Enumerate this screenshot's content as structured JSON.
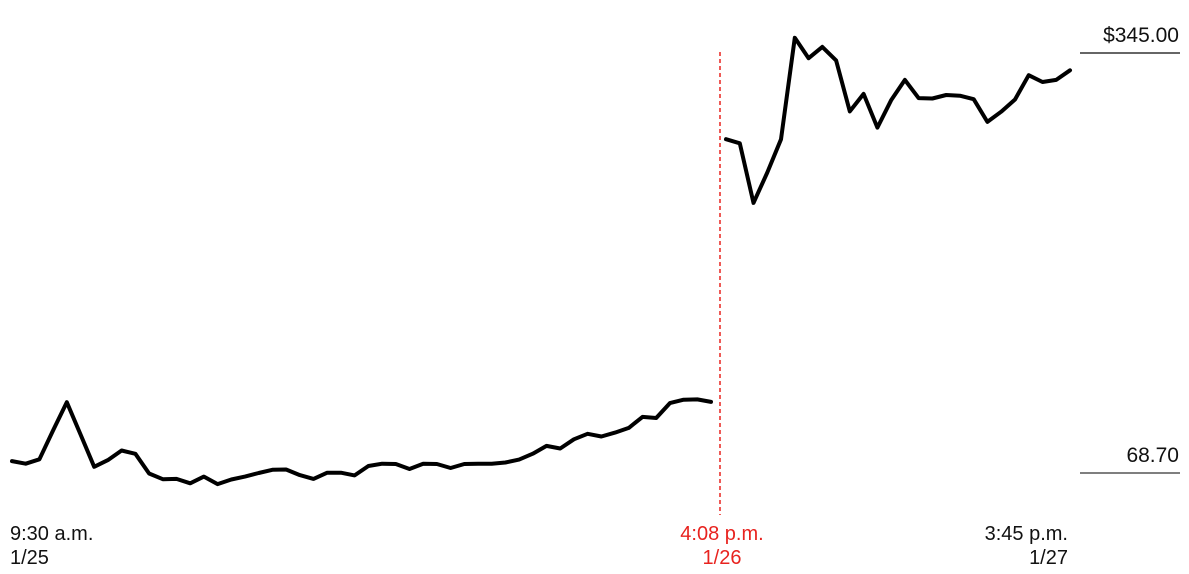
{
  "chart_data": {
    "type": "line",
    "title": "",
    "xlabel": "",
    "ylabel": "",
    "ylim": [
      68.7,
      345.0
    ],
    "y_axis_labels": [
      "$345.00",
      "68.70"
    ],
    "x_axis_labels": [
      {
        "time": "9:30 a.m.",
        "date": "1/25"
      },
      {
        "time": "4:08 p.m.",
        "date": "1/26",
        "highlight": true
      },
      {
        "time": "3:45 p.m.",
        "date": "1/27"
      }
    ],
    "marker": {
      "at": "4:08 p.m. 1/26",
      "color": "#e8231f",
      "style": "dashed"
    },
    "line_color": "#000000",
    "grid": false,
    "series": [
      {
        "segment": "1/25 9:30 a.m. – 1/26 4:08 p.m.",
        "values": [
          76.5,
          74.8,
          77.7,
          96.7,
          115.3,
          94.1,
          72.8,
          77.2,
          83.5,
          81.3,
          68.4,
          64.6,
          64.8,
          61.9,
          66.3,
          61.4,
          64.4,
          66.3,
          68.7,
          70.8,
          71.0,
          67.3,
          64.8,
          68.9,
          68.9,
          67.1,
          73.3,
          74.8,
          74.6,
          71.3,
          74.8,
          74.6,
          72.0,
          74.6,
          74.8,
          74.8,
          75.6,
          77.5,
          81.4,
          86.5,
          84.8,
          90.9,
          94.5,
          92.7,
          95.3,
          98.4,
          105.6,
          104.9,
          114.7,
          116.9,
          117.1,
          115.5
        ]
      },
      {
        "segment": "1/26 4:08 p.m. – 1/27 3:45 p.m.",
        "values": [
          288.3,
          285.6,
          246.4,
          266.4,
          288.2,
          355.0,
          341.6,
          349.0,
          340.1,
          306.6,
          318.1,
          295.9,
          313.9,
          327.3,
          315.3,
          315.1,
          317.4,
          316.9,
          314.6,
          299.7,
          306.4,
          314.4,
          330.4,
          325.9,
          327.3,
          333.6
        ]
      }
    ]
  }
}
